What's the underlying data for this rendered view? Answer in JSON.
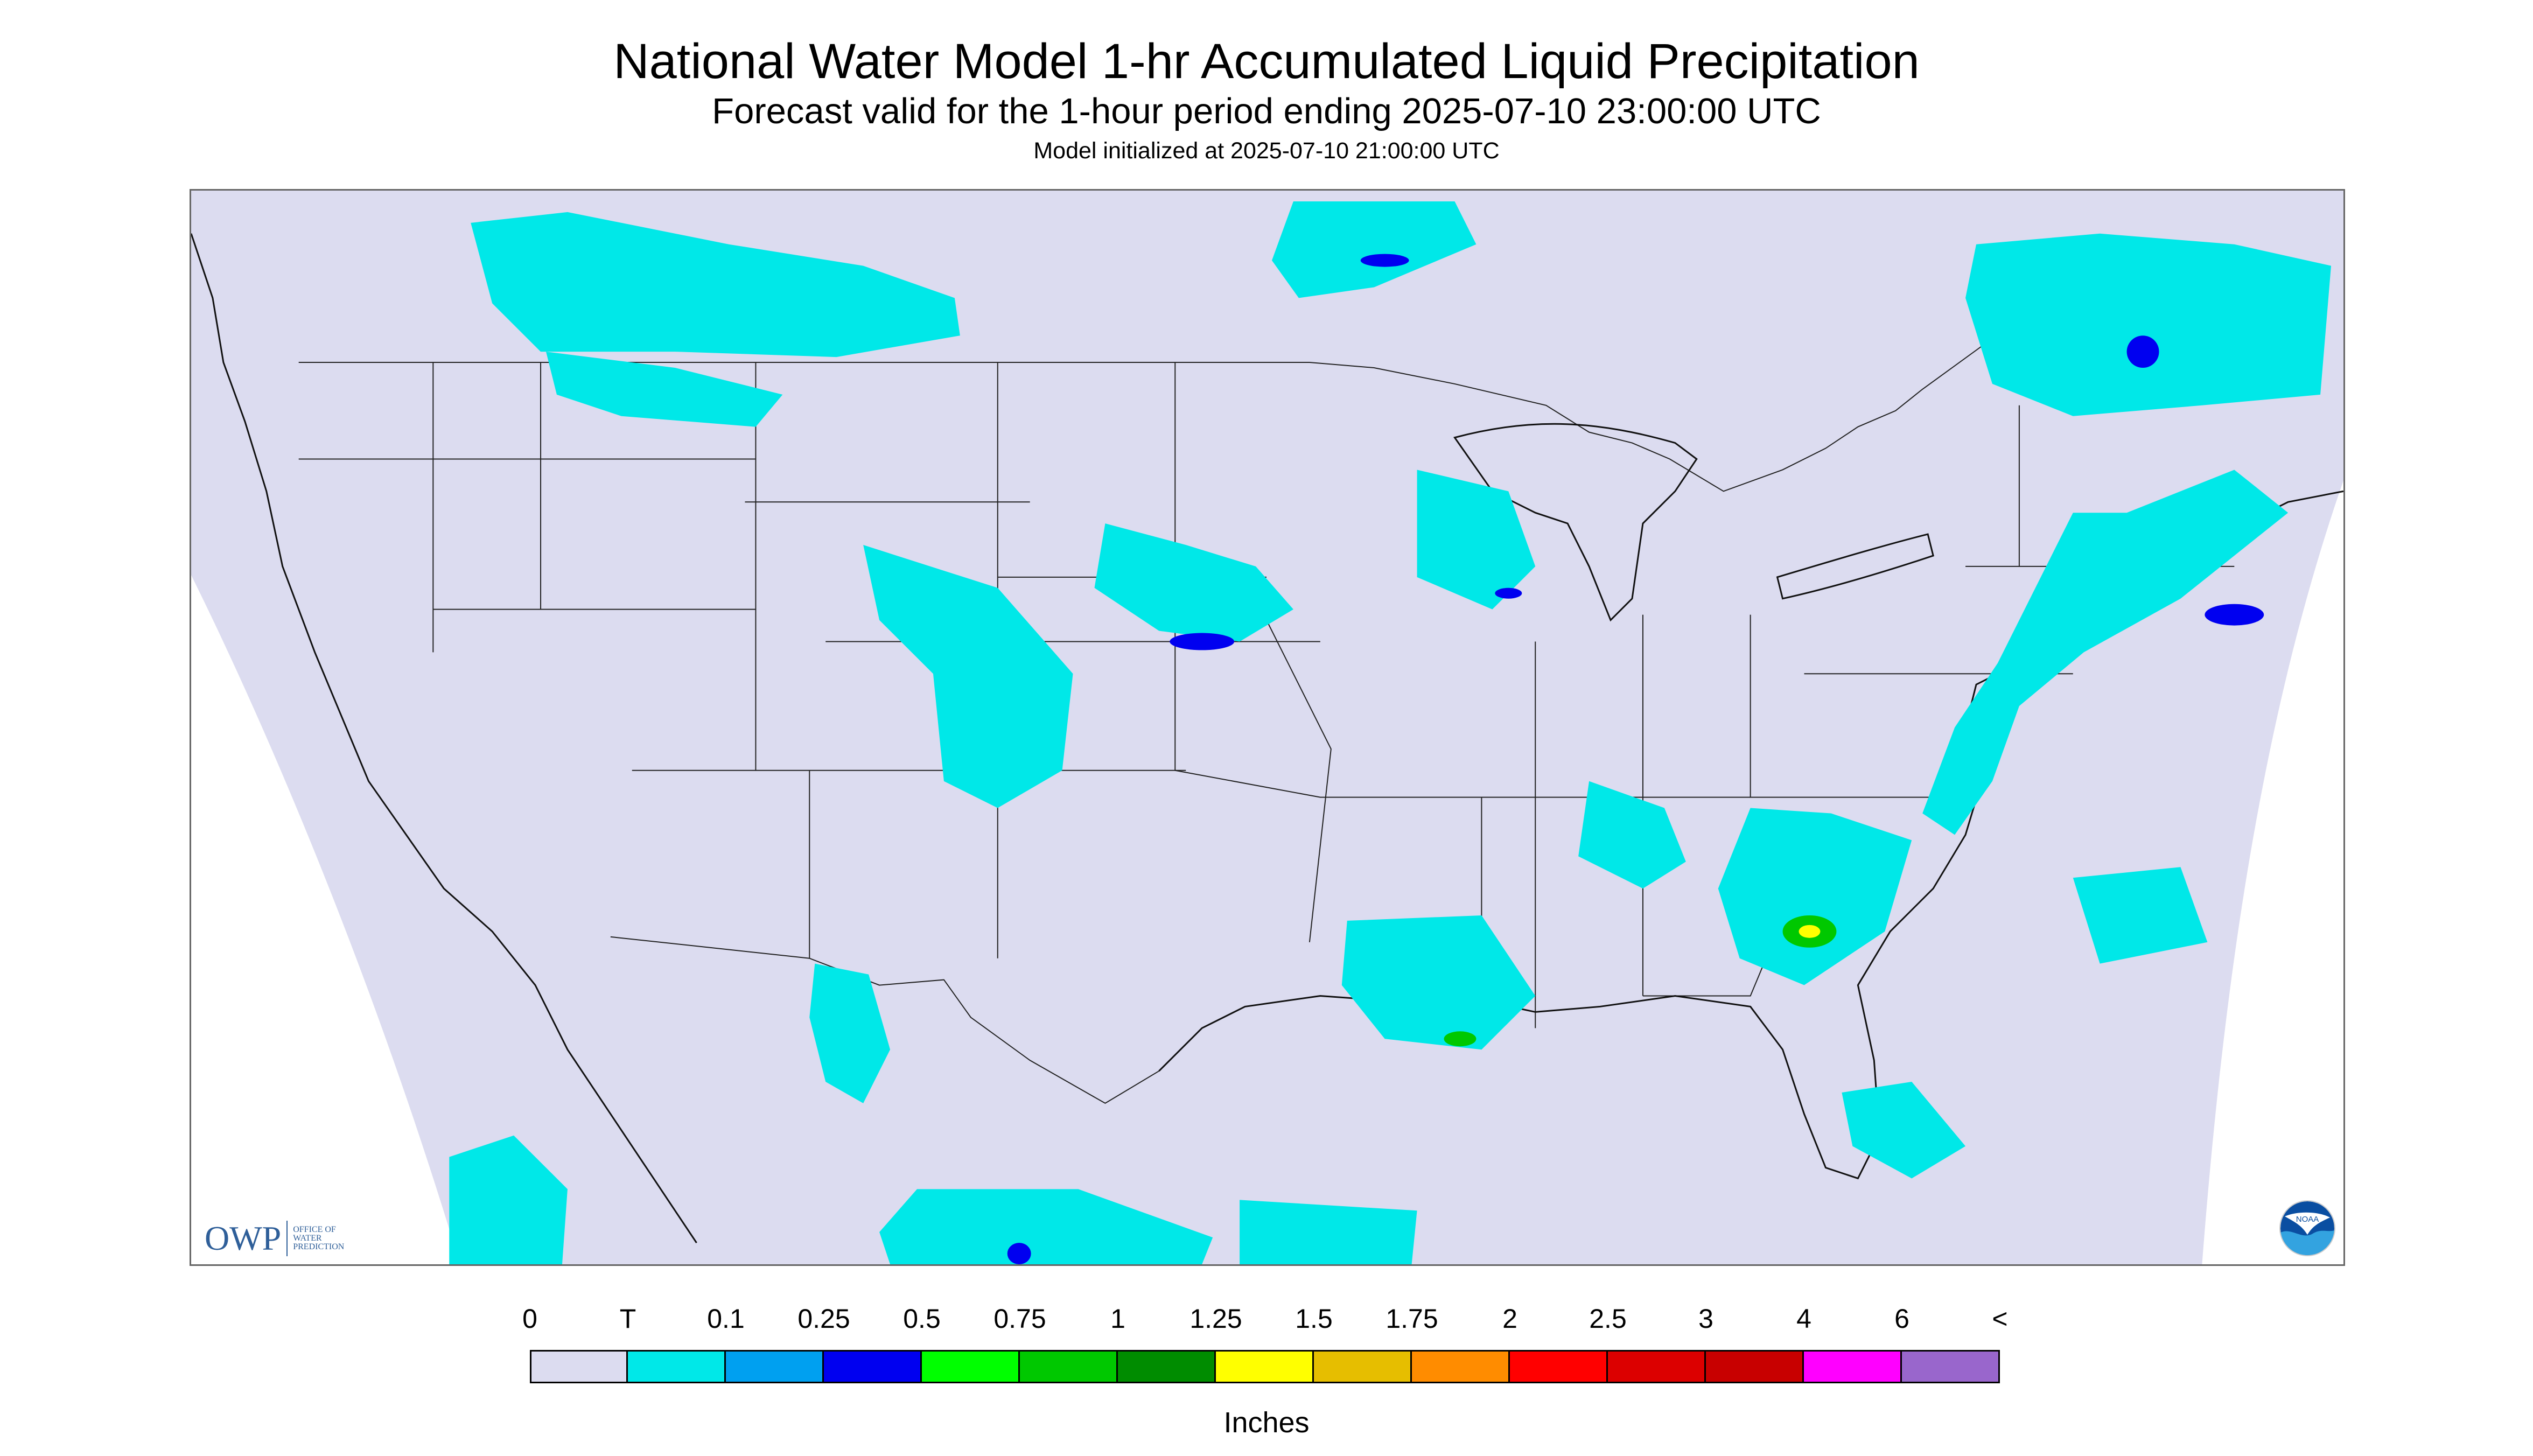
{
  "header": {
    "title": "National Water Model 1-hr Accumulated Liquid Precipitation",
    "subtitle": "Forecast valid for the 1-hour period ending 2025-07-10 23:00:00 UTC",
    "initialized": "Model initialized at 2025-07-10 21:00:00 UTC"
  },
  "map": {
    "background_color": "#dcdcf0",
    "border_color": "#666666"
  },
  "logos": {
    "owp_word": "OWP",
    "owp_small_lines": [
      "OFFICE OF",
      "WATER",
      "PREDICTION"
    ],
    "noaa_label": "NOAA"
  },
  "legend": {
    "ticks": [
      "0",
      "T",
      "0.1",
      "0.25",
      "0.5",
      "0.75",
      "1",
      "1.25",
      "1.5",
      "1.75",
      "2",
      "2.5",
      "3",
      "4",
      "6",
      "<"
    ],
    "colors": [
      "#dcdcf0",
      "#00e8e8",
      "#00a0f0",
      "#0000f0",
      "#00ff00",
      "#00c800",
      "#008c00",
      "#ffff00",
      "#e6be00",
      "#ff8c00",
      "#ff0000",
      "#dc0000",
      "#c80000",
      "#ff00ff",
      "#9966cc"
    ],
    "unit": "Inches"
  }
}
